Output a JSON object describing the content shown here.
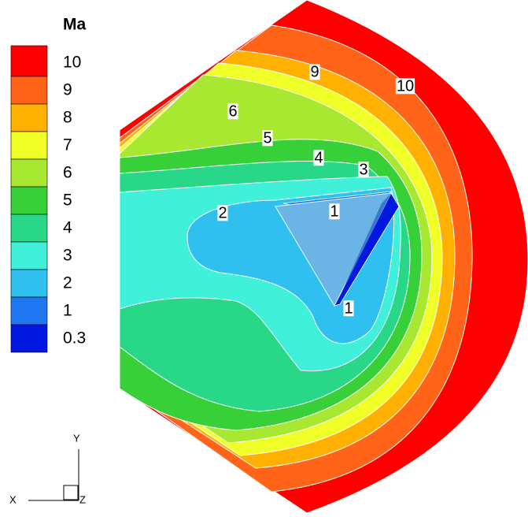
{
  "chart_data": {
    "type": "contour",
    "title": "Ma",
    "levels": [
      10,
      9,
      8,
      7,
      6,
      5,
      4,
      3,
      2,
      1,
      0.3
    ],
    "colors": [
      "#ff0000",
      "#ff6418",
      "#ffb000",
      "#f0ff28",
      "#a8e830",
      "#38d038",
      "#28d888",
      "#40f0d8",
      "#30c0f0",
      "#2078f0",
      "#0018e0"
    ],
    "contour_labels": [
      9,
      10,
      6,
      5,
      4,
      3,
      2,
      1,
      1
    ],
    "axes": {
      "x": "X",
      "y": "Y",
      "z": "Z"
    }
  }
}
